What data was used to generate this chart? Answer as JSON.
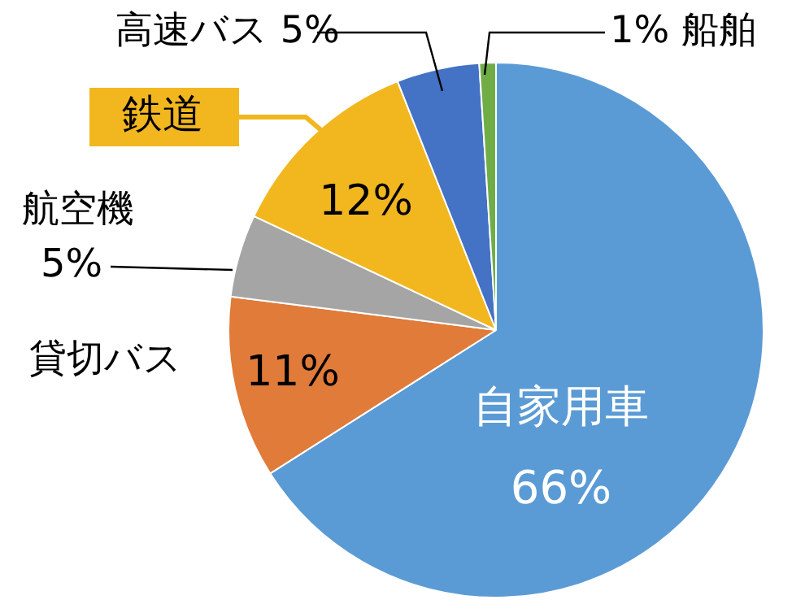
{
  "chart_data": {
    "type": "pie",
    "categories": [
      "自家用車",
      "貸切バス",
      "航空機",
      "鉄道",
      "高速バス",
      "船舶"
    ],
    "values": [
      66,
      11,
      5,
      12,
      5,
      1
    ],
    "value_labels": [
      "66%",
      "11%",
      "5%",
      "12%",
      "5%",
      "1%"
    ],
    "colors": [
      "#5b9bd5",
      "#e07b39",
      "#a5a5a5",
      "#f2b71f",
      "#4472c4",
      "#70ad47"
    ],
    "legend": false
  }
}
